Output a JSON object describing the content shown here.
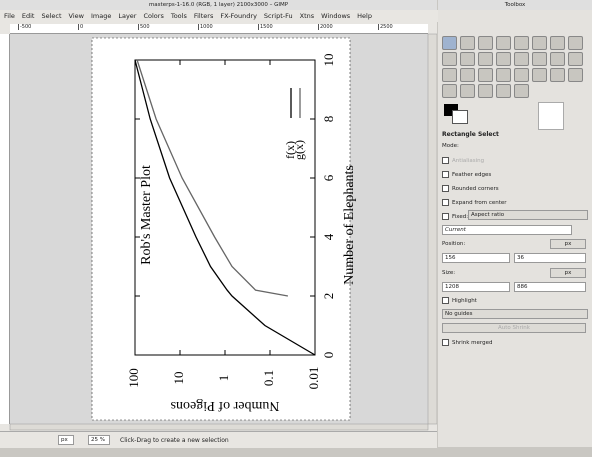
{
  "window": {
    "title": "masterps-1-16.0 (RGB, 1 layer) 2100x3000 – GIMP",
    "menu": [
      "File",
      "Edit",
      "Select",
      "View",
      "Image",
      "Layer",
      "Colors",
      "Tools",
      "Filters",
      "FX-Foundry",
      "Script-Fu",
      "Xtns",
      "Windows",
      "Help"
    ],
    "ruler": [
      "-500",
      "0",
      "500",
      "1000",
      "1500",
      "2000",
      "2500"
    ]
  },
  "chart_data": {
    "type": "line",
    "title": "Rob's Master Plot",
    "x_label": "Number of Elephants",
    "y_label": "Number of Pigeons",
    "x": [
      0,
      1,
      2,
      2.2,
      3,
      4,
      6,
      8,
      10
    ],
    "series": [
      {
        "name": "f(x)",
        "color": "#000000",
        "values": [
          0.01,
          0.13,
          0.7,
          0.9,
          2.1,
          4.4,
          17,
          46,
          100
        ]
      },
      {
        "name": "g(x)",
        "color": "#666666",
        "values": [
          null,
          null,
          0.04,
          0.21,
          0.7,
          1.7,
          9,
          34,
          90
        ]
      }
    ],
    "xlim": [
      0,
      10
    ],
    "xticks": [
      0,
      2,
      4,
      6,
      8,
      10
    ],
    "ylim": [
      0.01,
      100
    ],
    "yticks": [
      100,
      10,
      1,
      0.1,
      0.01
    ],
    "y_log": true
  },
  "status_bar": {
    "unit": "px",
    "zoom": "25 %",
    "message": "Click-Drag to create a new selection"
  },
  "toolbox": {
    "title": "Toolbox",
    "tool_name": "Rectangle Select",
    "mode_label": "Mode:",
    "antialiasing": "Antialiasing",
    "feather": "Feather edges",
    "rounded": "Rounded corners",
    "expand": "Expand from center",
    "fixed_label": "Fixed:",
    "fixed_value": "Aspect ratio",
    "fixed_entry": "Current",
    "position_label": "Position:",
    "position_unit": "px",
    "position_x": "156",
    "position_y": "36",
    "size_label": "Size:",
    "size_unit": "px",
    "size_w": "1208",
    "size_h": "886",
    "highlight": "Highlight",
    "guides": "No guides",
    "auto_shrink": "Auto Shrink",
    "shrink_merged": "Shrink merged"
  }
}
